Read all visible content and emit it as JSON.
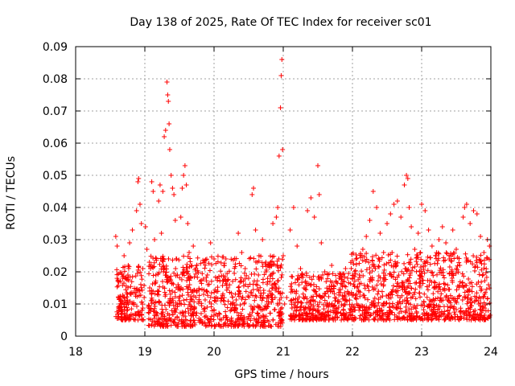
{
  "chart_data": {
    "type": "scatter",
    "title": "Day 138 of 2025, Rate Of TEC Index for receiver sc01",
    "xlabel": "GPS time / hours",
    "ylabel": "ROTI / TECUs",
    "xlim": [
      18,
      24
    ],
    "ylim": [
      0,
      0.09
    ],
    "x_ticks": [
      "18",
      "19",
      "20",
      "21",
      "22",
      "23",
      "24"
    ],
    "y_ticks": [
      "0",
      "0.01",
      "0.02",
      "0.03",
      "0.04",
      "0.05",
      "0.06",
      "0.07",
      "0.08",
      "0.09"
    ],
    "grid": true,
    "marker": "+",
    "color": "#ff0000",
    "series": [
      {
        "name": "ROTI",
        "points": [
          [
            18.58,
            0.031
          ],
          [
            18.6,
            0.028
          ],
          [
            18.62,
            0.012
          ],
          [
            18.64,
            0.009
          ],
          [
            18.66,
            0.006
          ],
          [
            18.68,
            0.018
          ],
          [
            18.7,
            0.025
          ],
          [
            18.72,
            0.011
          ],
          [
            18.74,
            0.008
          ],
          [
            18.76,
            0.022
          ],
          [
            18.78,
            0.029
          ],
          [
            18.8,
            0.013
          ],
          [
            18.82,
            0.033
          ],
          [
            18.84,
            0.01
          ],
          [
            18.86,
            0.007
          ],
          [
            18.88,
            0.039
          ],
          [
            18.9,
            0.048
          ],
          [
            18.91,
            0.049
          ],
          [
            18.93,
            0.041
          ],
          [
            18.95,
            0.035
          ],
          [
            18.97,
            0.021
          ],
          [
            18.99,
            0.012
          ],
          [
            19.01,
            0.034
          ],
          [
            19.03,
            0.027
          ],
          [
            19.05,
            0.009
          ],
          [
            19.07,
            0.015
          ],
          [
            19.09,
            0.011
          ],
          [
            19.1,
            0.048
          ],
          [
            19.12,
            0.045
          ],
          [
            19.14,
            0.03
          ],
          [
            19.16,
            0.019
          ],
          [
            19.18,
            0.013
          ],
          [
            19.2,
            0.042
          ],
          [
            19.22,
            0.047
          ],
          [
            19.24,
            0.032
          ],
          [
            19.26,
            0.045
          ],
          [
            19.28,
            0.062
          ],
          [
            19.3,
            0.064
          ],
          [
            19.32,
            0.079
          ],
          [
            19.33,
            0.075
          ],
          [
            19.34,
            0.073
          ],
          [
            19.35,
            0.066
          ],
          [
            19.36,
            0.058
          ],
          [
            19.38,
            0.05
          ],
          [
            19.4,
            0.046
          ],
          [
            19.42,
            0.044
          ],
          [
            19.44,
            0.036
          ],
          [
            19.46,
            0.024
          ],
          [
            19.48,
            0.016
          ],
          [
            19.5,
            0.011
          ],
          [
            19.52,
            0.037
          ],
          [
            19.54,
            0.046
          ],
          [
            19.56,
            0.05
          ],
          [
            19.58,
            0.053
          ],
          [
            19.6,
            0.047
          ],
          [
            19.62,
            0.035
          ],
          [
            19.64,
            0.026
          ],
          [
            19.66,
            0.018
          ],
          [
            19.7,
            0.028
          ],
          [
            19.75,
            0.022
          ],
          [
            19.8,
            0.017
          ],
          [
            19.85,
            0.013
          ],
          [
            19.9,
            0.009
          ],
          [
            19.95,
            0.029
          ],
          [
            20.0,
            0.024
          ],
          [
            20.05,
            0.018
          ],
          [
            20.1,
            0.011
          ],
          [
            20.15,
            0.022
          ],
          [
            20.2,
            0.015
          ],
          [
            20.25,
            0.004
          ],
          [
            20.3,
            0.008
          ],
          [
            20.35,
            0.032
          ],
          [
            20.4,
            0.026
          ],
          [
            20.45,
            0.021
          ],
          [
            20.5,
            0.018
          ],
          [
            20.55,
            0.044
          ],
          [
            20.57,
            0.046
          ],
          [
            20.6,
            0.033
          ],
          [
            20.65,
            0.025
          ],
          [
            20.7,
            0.03
          ],
          [
            20.75,
            0.02
          ],
          [
            20.8,
            0.014
          ],
          [
            20.85,
            0.035
          ],
          [
            20.9,
            0.037
          ],
          [
            20.92,
            0.04
          ],
          [
            20.94,
            0.056
          ],
          [
            20.96,
            0.071
          ],
          [
            20.97,
            0.081
          ],
          [
            20.98,
            0.086
          ],
          [
            20.99,
            0.058
          ],
          [
            21.0,
            0.025
          ],
          [
            21.02,
            0.01
          ],
          [
            21.05,
            0.012
          ],
          [
            21.1,
            0.033
          ],
          [
            21.15,
            0.04
          ],
          [
            21.2,
            0.028
          ],
          [
            21.25,
            0.021
          ],
          [
            21.3,
            0.015
          ],
          [
            21.35,
            0.039
          ],
          [
            21.4,
            0.043
          ],
          [
            21.45,
            0.037
          ],
          [
            21.5,
            0.053
          ],
          [
            21.52,
            0.044
          ],
          [
            21.55,
            0.029
          ],
          [
            21.6,
            0.02
          ],
          [
            21.65,
            0.014
          ],
          [
            21.7,
            0.022
          ],
          [
            21.75,
            0.011
          ],
          [
            21.8,
            0.009
          ],
          [
            21.85,
            0.016
          ],
          [
            21.9,
            0.021
          ],
          [
            21.95,
            0.013
          ],
          [
            22.0,
            0.018
          ],
          [
            22.05,
            0.024
          ],
          [
            22.1,
            0.019
          ],
          [
            22.15,
            0.027
          ],
          [
            22.2,
            0.031
          ],
          [
            22.25,
            0.036
          ],
          [
            22.3,
            0.045
          ],
          [
            22.35,
            0.04
          ],
          [
            22.4,
            0.032
          ],
          [
            22.45,
            0.026
          ],
          [
            22.5,
            0.035
          ],
          [
            22.55,
            0.038
          ],
          [
            22.6,
            0.041
          ],
          [
            22.65,
            0.042
          ],
          [
            22.7,
            0.037
          ],
          [
            22.75,
            0.047
          ],
          [
            22.78,
            0.05
          ],
          [
            22.8,
            0.049
          ],
          [
            22.82,
            0.04
          ],
          [
            22.85,
            0.034
          ],
          [
            22.9,
            0.027
          ],
          [
            22.95,
            0.032
          ],
          [
            23.0,
            0.041
          ],
          [
            23.05,
            0.039
          ],
          [
            23.1,
            0.033
          ],
          [
            23.15,
            0.028
          ],
          [
            23.2,
            0.025
          ],
          [
            23.25,
            0.03
          ],
          [
            23.3,
            0.034
          ],
          [
            23.35,
            0.029
          ],
          [
            23.4,
            0.024
          ],
          [
            23.45,
            0.033
          ],
          [
            23.5,
            0.027
          ],
          [
            23.55,
            0.022
          ],
          [
            23.6,
            0.037
          ],
          [
            23.62,
            0.04
          ],
          [
            23.65,
            0.041
          ],
          [
            23.7,
            0.035
          ],
          [
            23.75,
            0.039
          ],
          [
            23.8,
            0.038
          ],
          [
            23.85,
            0.031
          ],
          [
            23.9,
            0.026
          ],
          [
            23.95,
            0.03
          ],
          [
            23.98,
            0.028
          ]
        ]
      }
    ],
    "dense_band": {
      "note": "dense cloud of points between these ROTI values",
      "ranges": [
        {
          "x_from": 18.58,
          "x_to": 18.99,
          "y_min": 0.005,
          "y_max": 0.022
        },
        {
          "x_from": 19.05,
          "x_to": 20.99,
          "y_min": 0.003,
          "y_max": 0.025
        },
        {
          "x_from": 21.1,
          "x_to": 21.95,
          "y_min": 0.005,
          "y_max": 0.02
        },
        {
          "x_from": 21.95,
          "x_to": 23.99,
          "y_min": 0.005,
          "y_max": 0.026
        }
      ]
    }
  }
}
